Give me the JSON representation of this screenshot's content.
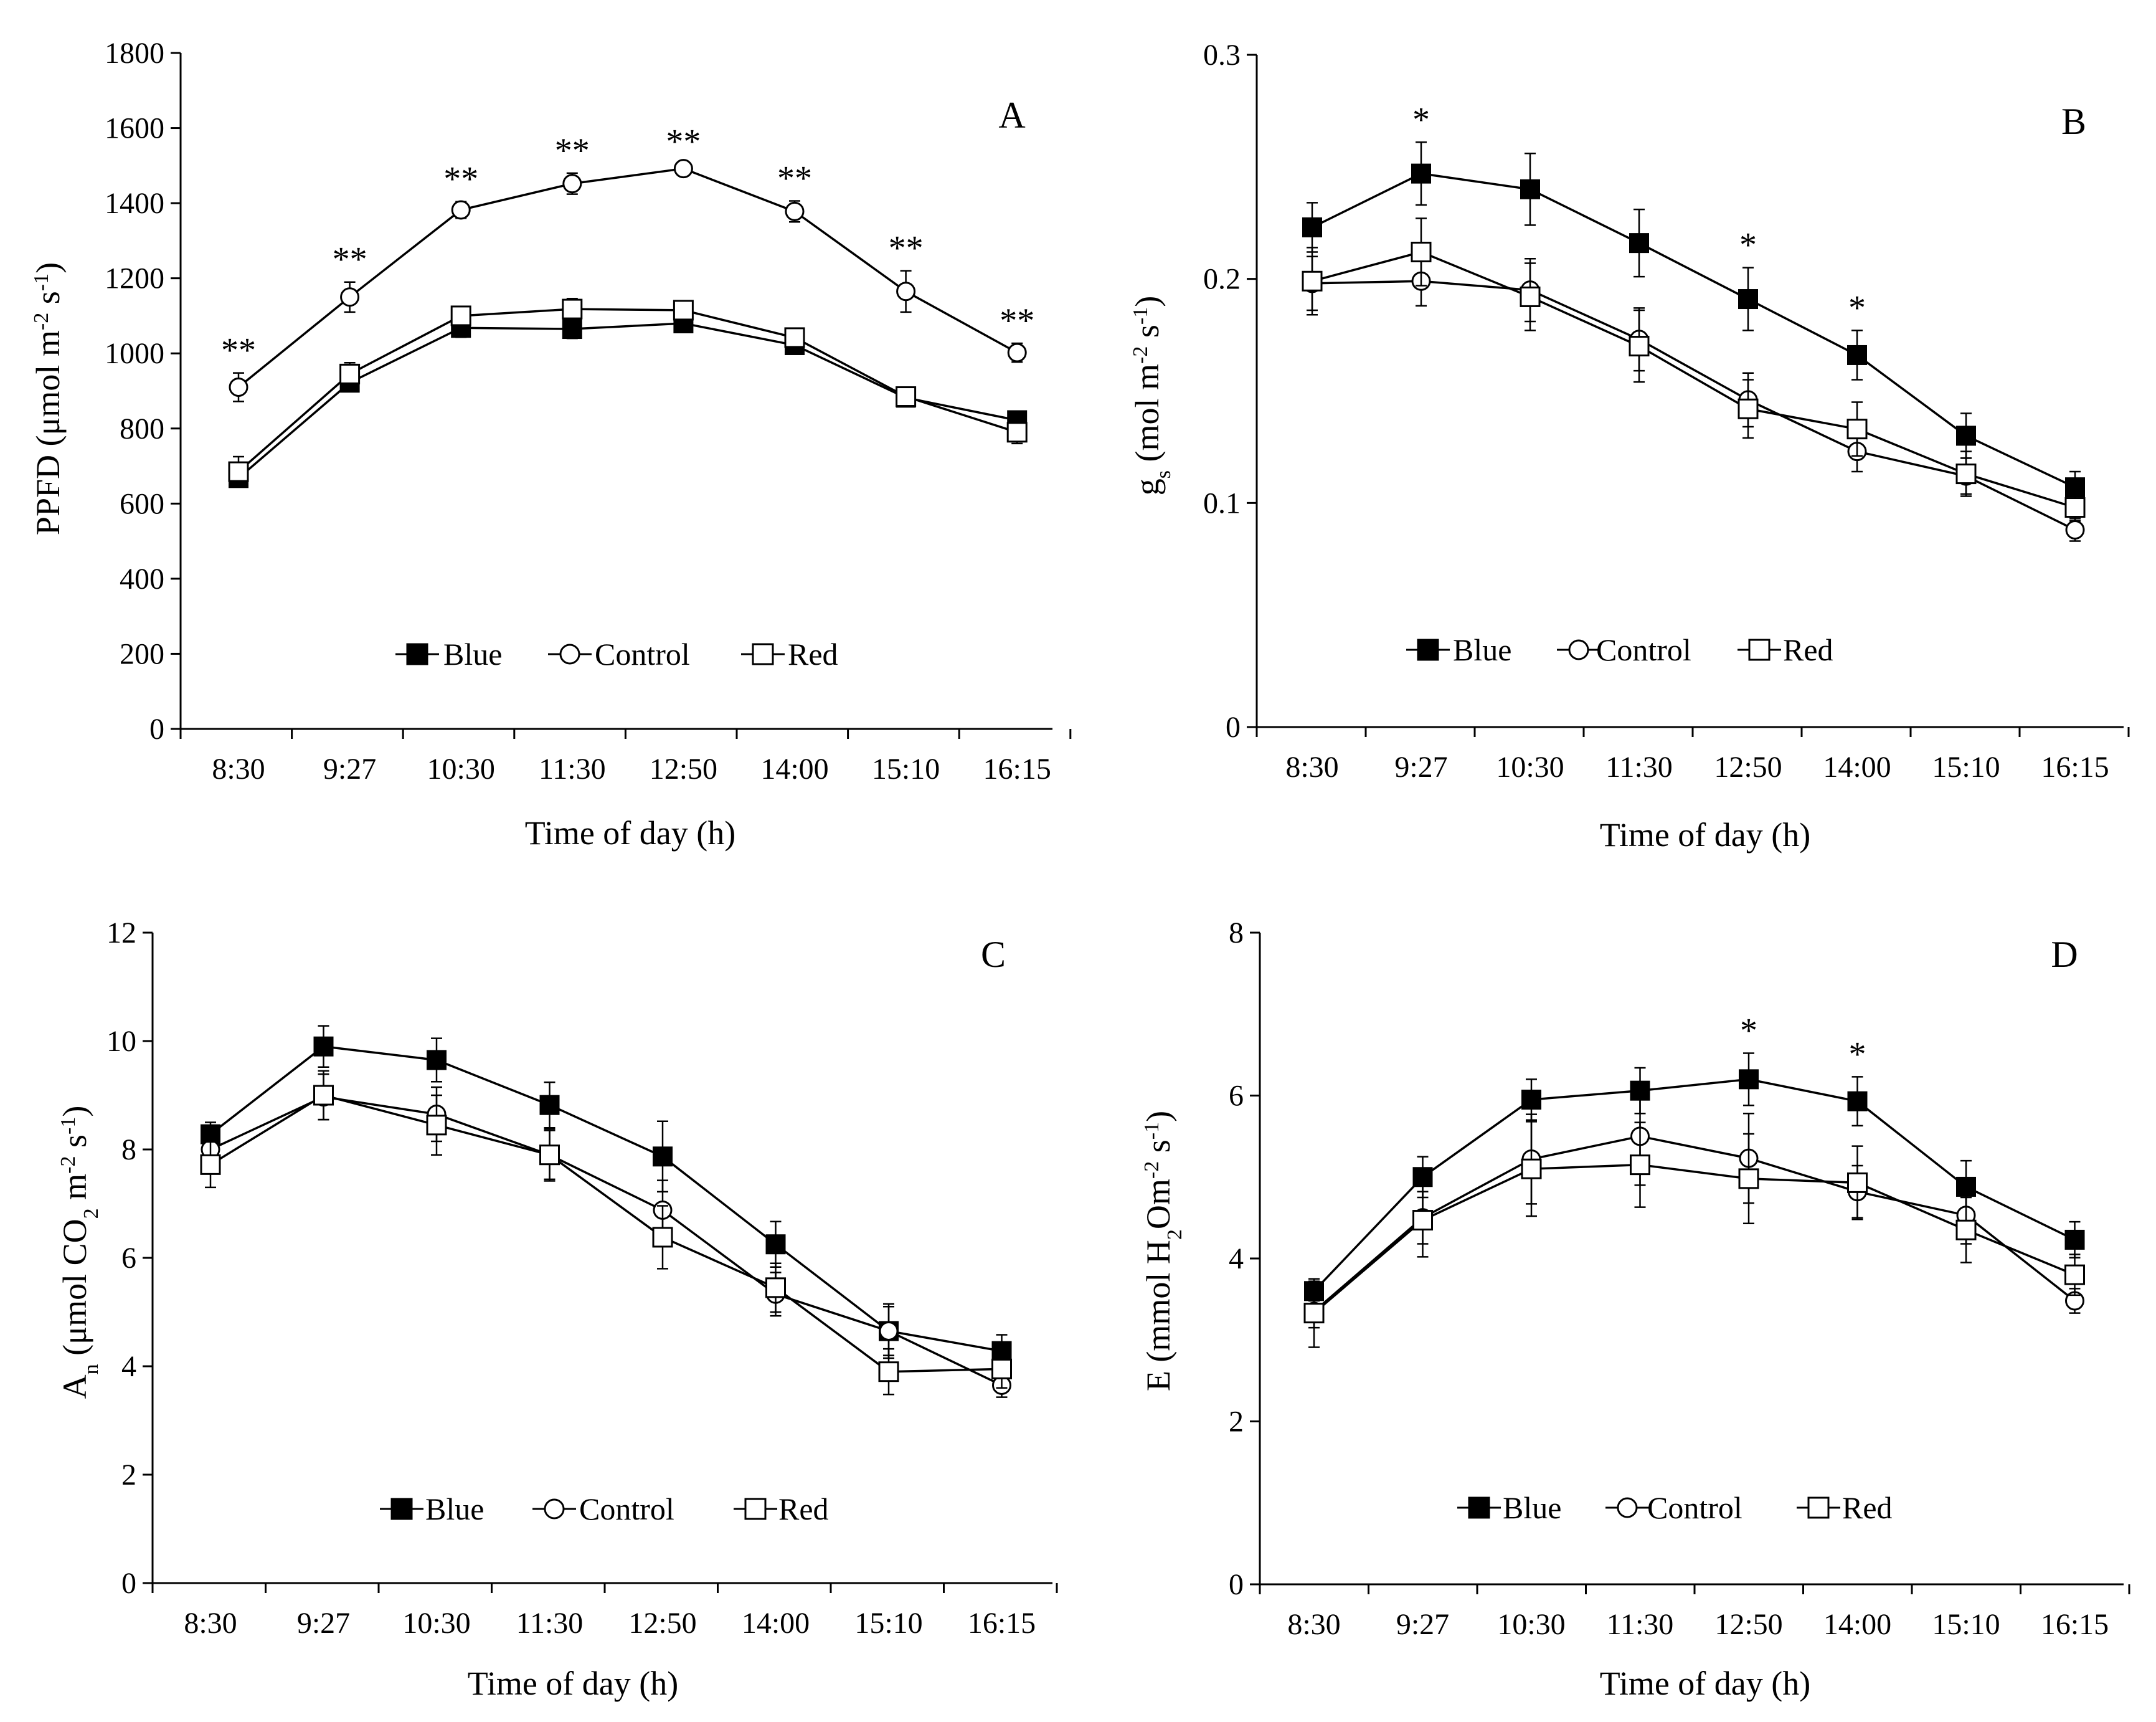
{
  "chart_data": [
    {
      "type": "line",
      "panel_letter": "A",
      "ylabel_main": "PPFD (μmol m",
      "ylabel_sup1": "-2",
      "ylabel_mid": " s",
      "ylabel_sup2": "-1",
      "ylabel_end": ")",
      "xlabel": "Time of day (h)",
      "categories": [
        "8:30",
        "9:27",
        "10:30",
        "11:30",
        "12:50",
        "14:00",
        "15:10",
        "16:15"
      ],
      "ylim": [
        0,
        1800
      ],
      "yticks": [
        0,
        200,
        400,
        600,
        800,
        1000,
        1200,
        1400,
        1600,
        1800
      ],
      "ytick_labels": [
        "0",
        "200",
        "400",
        "600",
        "800",
        "1000",
        "1200",
        "1400",
        "1600",
        "1800"
      ],
      "series": [
        {
          "name": "Blue",
          "marker": "filled-square",
          "values": [
            668,
            922,
            1068,
            1065,
            1080,
            1022,
            882,
            822
          ],
          "errors": [
            15,
            20,
            25,
            25,
            20,
            20,
            20,
            18
          ]
        },
        {
          "name": "Control",
          "marker": "open-circle",
          "values": [
            910,
            1150,
            1382,
            1452,
            1492,
            1378,
            1165,
            1002
          ],
          "errors": [
            38,
            40,
            22,
            28,
            12,
            28,
            55,
            25
          ]
        },
        {
          "name": "Red",
          "marker": "open-square",
          "values": [
            685,
            945,
            1100,
            1118,
            1115,
            1042,
            885,
            790
          ],
          "errors": [
            40,
            30,
            22,
            28,
            25,
            25,
            25,
            30
          ]
        }
      ],
      "significance": [
        "**",
        "**",
        "**",
        "**",
        "**",
        "**",
        "**",
        "**"
      ],
      "legend": [
        "Blue",
        "Control",
        "Red"
      ],
      "legend_position": "bottom-center"
    },
    {
      "type": "line",
      "panel_letter": "B",
      "ylabel_main": "g",
      "ylabel_sub": "s",
      "ylabel_rest": " (mol m",
      "ylabel_sup1": "-2",
      "ylabel_mid": " s",
      "ylabel_sup2": "-1",
      "ylabel_end": ")",
      "xlabel": "Time of day (h)",
      "categories": [
        "8:30",
        "9:27",
        "10:30",
        "11:30",
        "12:50",
        "14:00",
        "15:10",
        "16:15"
      ],
      "ylim": [
        0,
        0.3
      ],
      "yticks": [
        0,
        0.1,
        0.2,
        0.3
      ],
      "ytick_labels": [
        "0",
        "0.1",
        "0.2",
        "0.3"
      ],
      "series": [
        {
          "name": "Blue",
          "marker": "filled-square",
          "values": [
            0.223,
            0.247,
            0.24,
            0.216,
            0.191,
            0.166,
            0.13,
            0.107
          ],
          "errors": [
            0.011,
            0.014,
            0.016,
            0.015,
            0.014,
            0.011,
            0.01,
            0.007
          ]
        },
        {
          "name": "Control",
          "marker": "open-circle",
          "values": [
            0.198,
            0.199,
            0.195,
            0.173,
            0.146,
            0.123,
            0.112,
            0.088
          ],
          "errors": [
            0.012,
            0.011,
            0.014,
            0.014,
            0.012,
            0.009,
            0.008,
            0.005
          ]
        },
        {
          "name": "Red",
          "marker": "open-square",
          "values": [
            0.199,
            0.212,
            0.192,
            0.17,
            0.142,
            0.133,
            0.113,
            0.098
          ],
          "errors": [
            0.015,
            0.015,
            0.015,
            0.016,
            0.013,
            0.012,
            0.01,
            0.006
          ]
        }
      ],
      "significance": [
        "",
        "*",
        "",
        "",
        "*",
        "*",
        "",
        ""
      ],
      "legend": [
        "Blue",
        "Control",
        "Red"
      ],
      "legend_position": "bottom-center"
    },
    {
      "type": "line",
      "panel_letter": "C",
      "ylabel_main": "A",
      "ylabel_sub": "n",
      "ylabel_rest": " (μmol CO",
      "ylabel_sub2": "2",
      "ylabel_rest2": " m",
      "ylabel_sup1": "-2",
      "ylabel_mid": " s",
      "ylabel_sup2": "-1",
      "ylabel_end": ")",
      "xlabel": "Time of day (h)",
      "categories": [
        "8:30",
        "9:27",
        "10:30",
        "11:30",
        "12:50",
        "14:00",
        "15:10",
        "16:15"
      ],
      "ylim": [
        0,
        12
      ],
      "yticks": [
        0,
        2,
        4,
        6,
        8,
        10,
        12
      ],
      "ytick_labels": [
        "0",
        "2",
        "4",
        "6",
        "8",
        "10",
        "12"
      ],
      "series": [
        {
          "name": "Blue",
          "marker": "filled-square",
          "values": [
            8.28,
            9.9,
            9.65,
            8.82,
            7.87,
            6.25,
            4.65,
            4.28
          ],
          "errors": [
            0.22,
            0.38,
            0.4,
            0.42,
            0.65,
            0.42,
            0.5,
            0.3
          ]
        },
        {
          "name": "Control",
          "marker": "open-circle",
          "values": [
            8.0,
            8.97,
            8.65,
            7.9,
            6.88,
            5.33,
            4.65,
            3.65
          ],
          "errors": [
            0.3,
            0.42,
            0.5,
            0.45,
            0.55,
            0.4,
            0.45,
            0.22
          ]
        },
        {
          "name": "Red",
          "marker": "open-square",
          "values": [
            7.72,
            9.0,
            8.45,
            7.9,
            6.38,
            5.45,
            3.9,
            3.95
          ],
          "errors": [
            0.42,
            0.45,
            0.55,
            0.48,
            0.58,
            0.45,
            0.42,
            0.35
          ]
        }
      ],
      "significance": [
        "",
        "",
        "",
        "",
        "",
        "",
        "",
        ""
      ],
      "legend": [
        "Blue",
        "Control",
        "Red"
      ],
      "legend_position": "bottom-center"
    },
    {
      "type": "line",
      "panel_letter": "D",
      "ylabel_main": "E (mmol H",
      "ylabel_sub": "2",
      "ylabel_rest": "Om",
      "ylabel_sup1": "-2",
      "ylabel_mid": " s",
      "ylabel_sup2": "-1",
      "ylabel_end": ")",
      "xlabel": "Time of day (h)",
      "categories": [
        "8:30",
        "9:27",
        "10:30",
        "11:30",
        "12:50",
        "14:00",
        "15:10",
        "16:15"
      ],
      "ylim": [
        0,
        8
      ],
      "yticks": [
        0,
        2,
        4,
        6,
        8
      ],
      "ytick_labels": [
        "0",
        "2",
        "4",
        "6",
        "8"
      ],
      "series": [
        {
          "name": "Blue",
          "marker": "filled-square",
          "values": [
            3.6,
            5.0,
            5.95,
            6.06,
            6.2,
            5.93,
            4.88,
            4.23
          ],
          "errors": [
            0.12,
            0.25,
            0.25,
            0.28,
            0.32,
            0.3,
            0.32,
            0.22
          ]
        },
        {
          "name": "Control",
          "marker": "open-circle",
          "values": [
            3.35,
            4.5,
            5.22,
            5.5,
            5.23,
            4.82,
            4.53,
            3.48
          ],
          "errors": [
            0.2,
            0.32,
            0.55,
            0.6,
            0.55,
            0.32,
            0.35,
            0.15
          ]
        },
        {
          "name": "Red",
          "marker": "open-square",
          "values": [
            3.33,
            4.47,
            5.1,
            5.15,
            4.98,
            4.93,
            4.35,
            3.8
          ],
          "errors": [
            0.42,
            0.45,
            0.58,
            0.52,
            0.55,
            0.45,
            0.4,
            0.25
          ]
        }
      ],
      "significance": [
        "",
        "",
        "",
        "",
        "*",
        "*",
        "",
        ""
      ],
      "legend": [
        "Blue",
        "Control",
        "Red"
      ],
      "legend_position": "bottom-center"
    }
  ]
}
